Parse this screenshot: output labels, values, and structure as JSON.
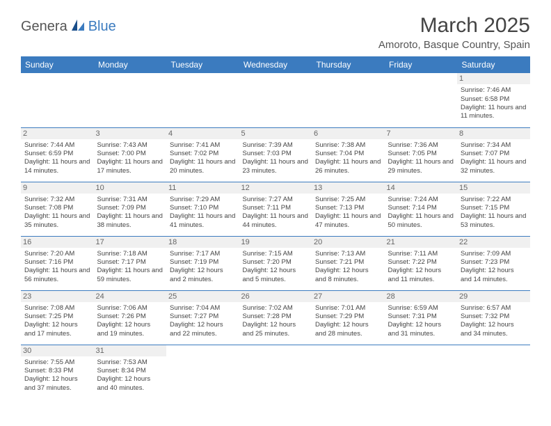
{
  "logo": {
    "part1": "Genera",
    "part2": "Blue"
  },
  "title": "March 2025",
  "location": "Amoroto, Basque Country, Spain",
  "weekdays": [
    "Sunday",
    "Monday",
    "Tuesday",
    "Wednesday",
    "Thursday",
    "Friday",
    "Saturday"
  ],
  "colors": {
    "header_bg": "#3b7bbf",
    "header_text": "#ffffff",
    "border": "#3b7bbf",
    "daynum_bg": "#f0f0f0",
    "body_text": "#444444"
  },
  "weeks": [
    [
      null,
      null,
      null,
      null,
      null,
      null,
      {
        "n": "1",
        "sr": "Sunrise: 7:46 AM",
        "ss": "Sunset: 6:58 PM",
        "dl": "Daylight: 11 hours and 11 minutes."
      }
    ],
    [
      {
        "n": "2",
        "sr": "Sunrise: 7:44 AM",
        "ss": "Sunset: 6:59 PM",
        "dl": "Daylight: 11 hours and 14 minutes."
      },
      {
        "n": "3",
        "sr": "Sunrise: 7:43 AM",
        "ss": "Sunset: 7:00 PM",
        "dl": "Daylight: 11 hours and 17 minutes."
      },
      {
        "n": "4",
        "sr": "Sunrise: 7:41 AM",
        "ss": "Sunset: 7:02 PM",
        "dl": "Daylight: 11 hours and 20 minutes."
      },
      {
        "n": "5",
        "sr": "Sunrise: 7:39 AM",
        "ss": "Sunset: 7:03 PM",
        "dl": "Daylight: 11 hours and 23 minutes."
      },
      {
        "n": "6",
        "sr": "Sunrise: 7:38 AM",
        "ss": "Sunset: 7:04 PM",
        "dl": "Daylight: 11 hours and 26 minutes."
      },
      {
        "n": "7",
        "sr": "Sunrise: 7:36 AM",
        "ss": "Sunset: 7:05 PM",
        "dl": "Daylight: 11 hours and 29 minutes."
      },
      {
        "n": "8",
        "sr": "Sunrise: 7:34 AM",
        "ss": "Sunset: 7:07 PM",
        "dl": "Daylight: 11 hours and 32 minutes."
      }
    ],
    [
      {
        "n": "9",
        "sr": "Sunrise: 7:32 AM",
        "ss": "Sunset: 7:08 PM",
        "dl": "Daylight: 11 hours and 35 minutes."
      },
      {
        "n": "10",
        "sr": "Sunrise: 7:31 AM",
        "ss": "Sunset: 7:09 PM",
        "dl": "Daylight: 11 hours and 38 minutes."
      },
      {
        "n": "11",
        "sr": "Sunrise: 7:29 AM",
        "ss": "Sunset: 7:10 PM",
        "dl": "Daylight: 11 hours and 41 minutes."
      },
      {
        "n": "12",
        "sr": "Sunrise: 7:27 AM",
        "ss": "Sunset: 7:11 PM",
        "dl": "Daylight: 11 hours and 44 minutes."
      },
      {
        "n": "13",
        "sr": "Sunrise: 7:25 AM",
        "ss": "Sunset: 7:13 PM",
        "dl": "Daylight: 11 hours and 47 minutes."
      },
      {
        "n": "14",
        "sr": "Sunrise: 7:24 AM",
        "ss": "Sunset: 7:14 PM",
        "dl": "Daylight: 11 hours and 50 minutes."
      },
      {
        "n": "15",
        "sr": "Sunrise: 7:22 AM",
        "ss": "Sunset: 7:15 PM",
        "dl": "Daylight: 11 hours and 53 minutes."
      }
    ],
    [
      {
        "n": "16",
        "sr": "Sunrise: 7:20 AM",
        "ss": "Sunset: 7:16 PM",
        "dl": "Daylight: 11 hours and 56 minutes."
      },
      {
        "n": "17",
        "sr": "Sunrise: 7:18 AM",
        "ss": "Sunset: 7:17 PM",
        "dl": "Daylight: 11 hours and 59 minutes."
      },
      {
        "n": "18",
        "sr": "Sunrise: 7:17 AM",
        "ss": "Sunset: 7:19 PM",
        "dl": "Daylight: 12 hours and 2 minutes."
      },
      {
        "n": "19",
        "sr": "Sunrise: 7:15 AM",
        "ss": "Sunset: 7:20 PM",
        "dl": "Daylight: 12 hours and 5 minutes."
      },
      {
        "n": "20",
        "sr": "Sunrise: 7:13 AM",
        "ss": "Sunset: 7:21 PM",
        "dl": "Daylight: 12 hours and 8 minutes."
      },
      {
        "n": "21",
        "sr": "Sunrise: 7:11 AM",
        "ss": "Sunset: 7:22 PM",
        "dl": "Daylight: 12 hours and 11 minutes."
      },
      {
        "n": "22",
        "sr": "Sunrise: 7:09 AM",
        "ss": "Sunset: 7:23 PM",
        "dl": "Daylight: 12 hours and 14 minutes."
      }
    ],
    [
      {
        "n": "23",
        "sr": "Sunrise: 7:08 AM",
        "ss": "Sunset: 7:25 PM",
        "dl": "Daylight: 12 hours and 17 minutes."
      },
      {
        "n": "24",
        "sr": "Sunrise: 7:06 AM",
        "ss": "Sunset: 7:26 PM",
        "dl": "Daylight: 12 hours and 19 minutes."
      },
      {
        "n": "25",
        "sr": "Sunrise: 7:04 AM",
        "ss": "Sunset: 7:27 PM",
        "dl": "Daylight: 12 hours and 22 minutes."
      },
      {
        "n": "26",
        "sr": "Sunrise: 7:02 AM",
        "ss": "Sunset: 7:28 PM",
        "dl": "Daylight: 12 hours and 25 minutes."
      },
      {
        "n": "27",
        "sr": "Sunrise: 7:01 AM",
        "ss": "Sunset: 7:29 PM",
        "dl": "Daylight: 12 hours and 28 minutes."
      },
      {
        "n": "28",
        "sr": "Sunrise: 6:59 AM",
        "ss": "Sunset: 7:31 PM",
        "dl": "Daylight: 12 hours and 31 minutes."
      },
      {
        "n": "29",
        "sr": "Sunrise: 6:57 AM",
        "ss": "Sunset: 7:32 PM",
        "dl": "Daylight: 12 hours and 34 minutes."
      }
    ],
    [
      {
        "n": "30",
        "sr": "Sunrise: 7:55 AM",
        "ss": "Sunset: 8:33 PM",
        "dl": "Daylight: 12 hours and 37 minutes."
      },
      {
        "n": "31",
        "sr": "Sunrise: 7:53 AM",
        "ss": "Sunset: 8:34 PM",
        "dl": "Daylight: 12 hours and 40 minutes."
      },
      null,
      null,
      null,
      null,
      null
    ]
  ]
}
